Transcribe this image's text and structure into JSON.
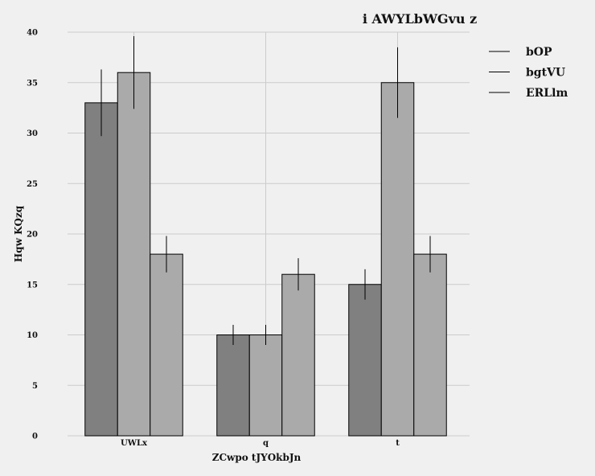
{
  "chart_data": {
    "type": "bar",
    "title": "i AWYLbWGvu z",
    "xlabel": "ZCwpo tJYOkbJn",
    "ylabel": "Hqw KQzq",
    "categories": [
      "UWLx",
      "q",
      "t"
    ],
    "series": [
      {
        "name": "bOP",
        "values": [
          33,
          10,
          15
        ],
        "errors": [
          3.3,
          1.0,
          1.5
        ],
        "color": "#808080"
      },
      {
        "name": "bgtVU",
        "values": [
          36,
          10,
          35
        ],
        "errors": [
          3.6,
          1.0,
          3.5
        ],
        "color": "#aaaaaa"
      },
      {
        "name": "ERLlm",
        "values": [
          18,
          16,
          18
        ],
        "errors": [
          1.8,
          1.6,
          1.8
        ],
        "color": "#aaaaaa"
      }
    ],
    "ylim": [
      0,
      40
    ],
    "yticks": [
      0,
      5,
      10,
      15,
      20,
      25,
      30,
      35,
      40
    ],
    "grid": true,
    "legend_position": "top-right"
  }
}
